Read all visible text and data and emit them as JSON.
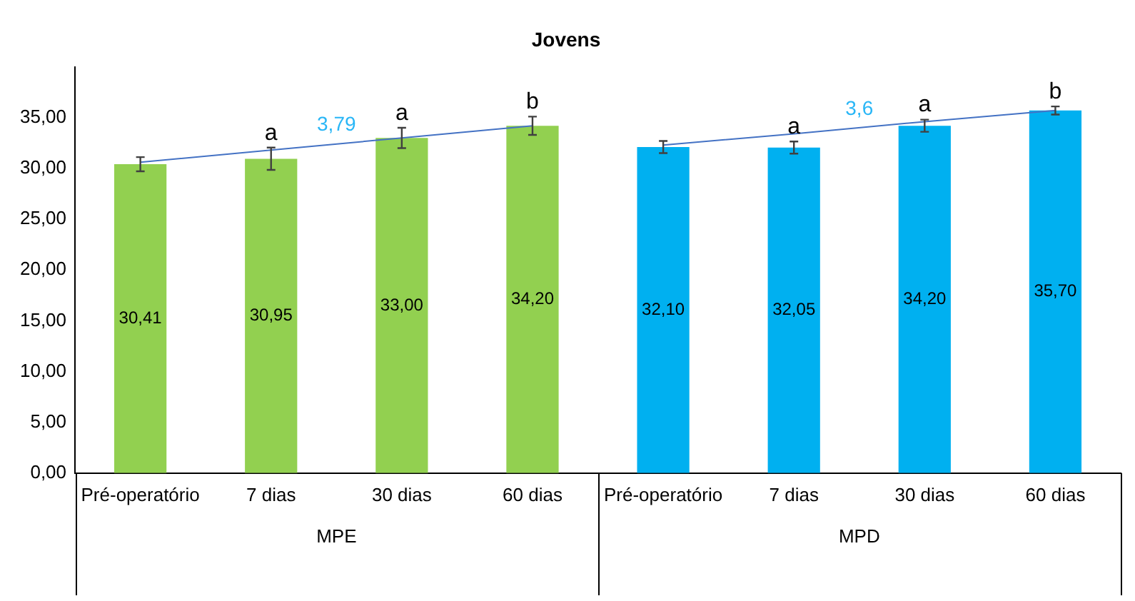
{
  "chart_data": {
    "type": "bar",
    "title": "Jovens",
    "categories": [
      "Pré-operatório",
      "7 dias",
      "30 dias",
      "60 dias",
      "Pré-operatório",
      "7 dias",
      "30 dias",
      "60 dias"
    ],
    "values": [
      30.41,
      30.95,
      33.0,
      34.2,
      32.1,
      32.05,
      34.2,
      35.7
    ],
    "colors": [
      "#92d050",
      "#92d050",
      "#92d050",
      "#92d050",
      "#00b0f0",
      "#00b0f0",
      "#00b0f0",
      "#00b0f0"
    ],
    "errors": [
      0.7,
      1.1,
      1.0,
      0.9,
      0.6,
      0.6,
      0.6,
      0.4
    ],
    "value_labels": [
      "30,41",
      "30,95",
      "33,00",
      "34,20",
      "32,10",
      "32,05",
      "34,20",
      "35,70"
    ],
    "series": [
      {
        "type": "line",
        "name": "3,79",
        "color": "#4472c4",
        "values": [
          30.6,
          31.8,
          33.0,
          34.2,
          null,
          null,
          null,
          null
        ]
      },
      {
        "type": "line",
        "name": "3,6",
        "color": "#4472c4",
        "values": [
          null,
          null,
          null,
          null,
          32.3,
          33.4,
          34.6,
          35.7
        ]
      }
    ],
    "annotations": [
      "a",
      "a",
      "b",
      "a",
      "a",
      "b",
      "MPE",
      "MPD"
    ],
    "ylim": [
      0,
      40
    ],
    "yticks": [
      {
        "value": 0,
        "label": "0,00"
      },
      {
        "value": 5,
        "label": "5,00"
      },
      {
        "value": 10,
        "label": "10,00"
      },
      {
        "value": 15,
        "label": "15,00"
      },
      {
        "value": 20,
        "label": "20,00"
      },
      {
        "value": 25,
        "label": "25,00"
      },
      {
        "value": 30,
        "label": "30,00"
      },
      {
        "value": 35,
        "label": "35,00"
      }
    ],
    "grid": false,
    "legend": false
  }
}
